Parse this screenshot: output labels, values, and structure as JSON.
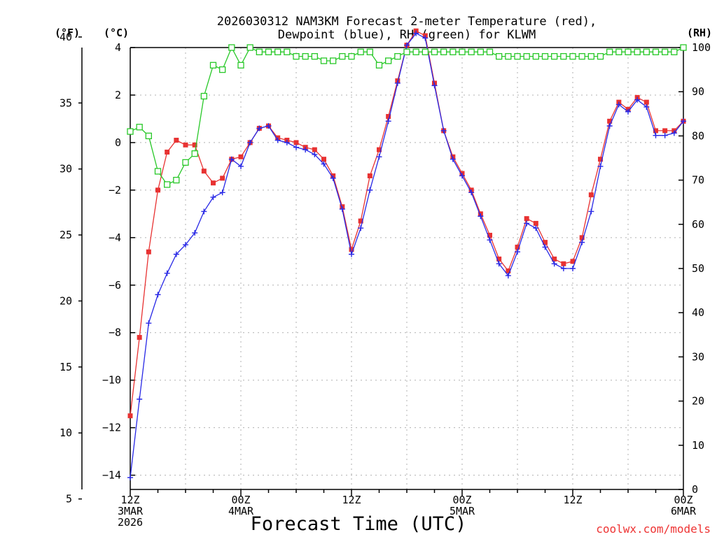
{
  "chart_data": {
    "type": "line",
    "title_line1": "2026030312 NAM3KM Forecast 2-meter Temperature (red),",
    "title_line2": "Dewpoint (blue), RH (green) for KLWM",
    "xlabel": "Forecast Time (UTC)",
    "credit": "coolwx.com/models",
    "unit_left_f": "(°F)",
    "unit_left_c": "(°C)",
    "unit_right": "(RH)",
    "ylim_c": [
      -14.6,
      4.0
    ],
    "ylim_rh": [
      0,
      100
    ],
    "y_ticks_c": [
      -14,
      -12,
      -10,
      -8,
      -6,
      -4,
      -2,
      0,
      2,
      4
    ],
    "y_ticks_f": [
      5,
      10,
      15,
      20,
      25,
      30,
      35,
      40
    ],
    "y_ticks_rh": [
      0,
      10,
      20,
      30,
      40,
      50,
      60,
      70,
      80,
      90,
      100
    ],
    "x_range_hours": [
      0,
      60
    ],
    "x_ticks": [
      {
        "hour": 0,
        "lines": [
          "12Z",
          "3MAR",
          "2026"
        ]
      },
      {
        "hour": 12,
        "lines": [
          "00Z",
          "4MAR"
        ]
      },
      {
        "hour": 24,
        "lines": [
          "12Z"
        ]
      },
      {
        "hour": 36,
        "lines": [
          "00Z",
          "5MAR"
        ]
      },
      {
        "hour": 48,
        "lines": [
          "12Z"
        ]
      },
      {
        "hour": 60,
        "lines": [
          "00Z",
          "6MAR"
        ]
      }
    ],
    "series": [
      {
        "name": "Temperature",
        "color": "#e83232",
        "marker": "square",
        "values": [
          -11.5,
          -8.2,
          -4.6,
          -2.0,
          -0.4,
          0.1,
          -0.1,
          -0.1,
          -1.2,
          -1.7,
          -1.5,
          -0.7,
          -0.6,
          0.0,
          0.6,
          0.7,
          0.2,
          0.1,
          0.0,
          -0.2,
          -0.3,
          -0.7,
          -1.4,
          -2.7,
          -4.5,
          -3.3,
          -1.4,
          -0.3,
          1.1,
          2.6,
          4.1,
          4.7,
          4.5,
          2.5,
          0.5,
          -0.6,
          -1.3,
          -2.0,
          -3.0,
          -3.9,
          -4.9,
          -5.4,
          -4.4,
          -3.2,
          -3.4,
          -4.2,
          -4.9,
          -5.1,
          -5.0,
          -4.0,
          -2.2,
          -0.7,
          0.9,
          1.7,
          1.4,
          1.9,
          1.7,
          0.5,
          0.5,
          0.5,
          0.9
        ]
      },
      {
        "name": "Dewpoint",
        "color": "#2828e6",
        "marker": "plus",
        "values": [
          -14.1,
          -10.8,
          -7.6,
          -6.4,
          -5.5,
          -4.7,
          -4.3,
          -3.8,
          -2.9,
          -2.3,
          -2.1,
          -0.7,
          -1.0,
          0.0,
          0.6,
          0.7,
          0.1,
          0.0,
          -0.2,
          -0.3,
          -0.5,
          -0.9,
          -1.5,
          -2.8,
          -4.7,
          -3.6,
          -2.0,
          -0.6,
          0.9,
          2.5,
          4.1,
          4.6,
          4.4,
          2.4,
          0.5,
          -0.7,
          -1.4,
          -2.1,
          -3.1,
          -4.1,
          -5.1,
          -5.6,
          -4.6,
          -3.4,
          -3.6,
          -4.4,
          -5.1,
          -5.3,
          -5.3,
          -4.2,
          -2.9,
          -1.0,
          0.7,
          1.6,
          1.3,
          1.8,
          1.5,
          0.3,
          0.3,
          0.4,
          0.9
        ]
      },
      {
        "name": "RH",
        "color": "#28c828",
        "marker": "open-square",
        "values": [
          81,
          82,
          80,
          72,
          69,
          70,
          74,
          76,
          89,
          96,
          95,
          100,
          96,
          100,
          99,
          99,
          99,
          99,
          98,
          98,
          98,
          97,
          97,
          98,
          98,
          99,
          99,
          96,
          97,
          98,
          99,
          99,
          99,
          99,
          99,
          99,
          99,
          99,
          99,
          99,
          98,
          98,
          98,
          98,
          98,
          98,
          98,
          98,
          98,
          98,
          98,
          98,
          99,
          99,
          99,
          99,
          99,
          99,
          99,
          99,
          100
        ]
      }
    ]
  }
}
